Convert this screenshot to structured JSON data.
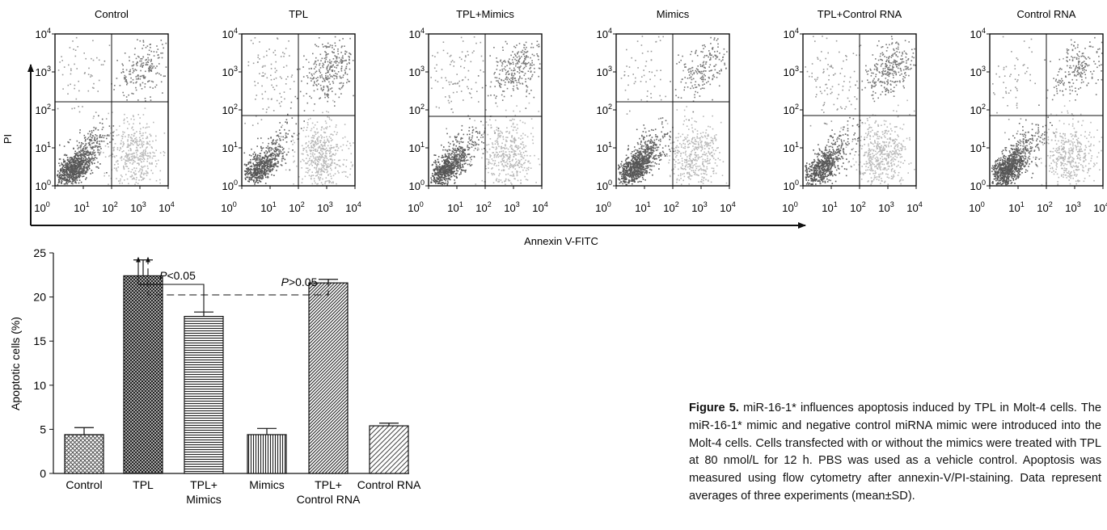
{
  "chart_data": [
    {
      "type": "scatter",
      "panels": [
        {
          "title": "Control",
          "dist": [
            0.5,
            0.3,
            0.15,
            0.05
          ]
        },
        {
          "title": "TPL",
          "dist": [
            0.35,
            0.35,
            0.22,
            0.08
          ]
        },
        {
          "title": "TPL+Mimics",
          "dist": [
            0.42,
            0.3,
            0.2,
            0.08
          ]
        },
        {
          "title": "Mimics",
          "dist": [
            0.5,
            0.3,
            0.15,
            0.05
          ]
        },
        {
          "title": "TPL+Control RNA",
          "dist": [
            0.35,
            0.35,
            0.22,
            0.08
          ]
        },
        {
          "title": "Control RNA",
          "dist": [
            0.5,
            0.3,
            0.15,
            0.05
          ]
        }
      ],
      "ylabel": "PI",
      "xlabel": "Annexin V-FITC",
      "xtick_base": "10",
      "xtick_exponents": [
        "0",
        "1",
        "2",
        "3",
        "4"
      ],
      "ytick_base": "10",
      "ytick_exponents": [
        "4",
        "3",
        "2",
        "1",
        "0"
      ],
      "xlim": [
        1,
        10000
      ],
      "ylim": [
        1,
        10000
      ],
      "xscale": "log",
      "yscale": "log"
    },
    {
      "type": "bar",
      "categories": [
        {
          "line1": "Control",
          "line2": ""
        },
        {
          "line1": "TPL",
          "line2": ""
        },
        {
          "line1": "TPL+",
          "line2": "Mimics"
        },
        {
          "line1": "Mimics",
          "line2": ""
        },
        {
          "line1": "TPL+",
          "line2": "Control RNA"
        },
        {
          "line1": "Control RNA",
          "line2": ""
        }
      ],
      "values": [
        4.4,
        22.4,
        17.8,
        4.4,
        21.6,
        5.4
      ],
      "errors": [
        0.8,
        1.8,
        0.5,
        0.7,
        0.4,
        0.3
      ],
      "ylabel": "Apoptotic cells (%)",
      "yticks": [
        "0",
        "5",
        "10",
        "15",
        "20",
        "25"
      ],
      "ylim": [
        0,
        25
      ],
      "annotations": [
        {
          "text_italic": "P",
          "text_rest": "<0.05",
          "from": 2,
          "to": 1,
          "style": "solid"
        },
        {
          "text_italic": "P",
          "text_rest": ">0.05",
          "from": 4,
          "to": 1,
          "style": "dashed"
        }
      ]
    }
  ],
  "caption": {
    "label": "Figure 5.",
    "text": "miR-16-1* influences apoptosis induced by TPL in Molt-4 cells. The miR-16-1* mimic and negative control miRNA mimic were introduced into the Molt-4 cells. Cells transfected with or without the mimics were treated with TPL at 80 nmol/L for 12 h. PBS was used as a vehicle control. Apoptosis was measured using flow cytometry after annexin-V/PI-staining. Data represent averages of three experiments (mean±SD)."
  }
}
